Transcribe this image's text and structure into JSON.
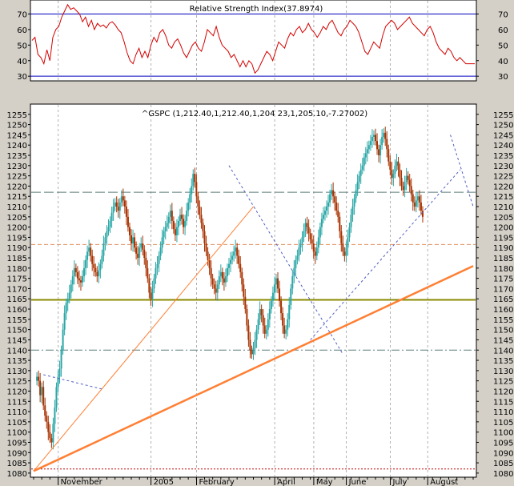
{
  "chart_data": [
    {
      "type": "line",
      "title": "Relative Strength Index(37.8974)",
      "ylim": [
        27,
        79
      ],
      "yticks": [
        30,
        40,
        50,
        60,
        70
      ],
      "reference_lines": [
        30,
        70
      ],
      "series": [
        {
          "color": "#d40000",
          "x": [
            0,
            2,
            4,
            6,
            8,
            10,
            12,
            14,
            16,
            18,
            20,
            22,
            24,
            26,
            28,
            30,
            32,
            34,
            36,
            38,
            40,
            42,
            44,
            46,
            48,
            50,
            52,
            54,
            56,
            58,
            60,
            62,
            64,
            66,
            68,
            70,
            72,
            74,
            76,
            78,
            80,
            82,
            84,
            86,
            88,
            90,
            92,
            94,
            96,
            98,
            100,
            102,
            104,
            106,
            108,
            110,
            112,
            114,
            116,
            118,
            120,
            122,
            124,
            126,
            128,
            130,
            132,
            134,
            136,
            138,
            140,
            142,
            144,
            146,
            148,
            150,
            152,
            154,
            156,
            158,
            160,
            162,
            164,
            166,
            168,
            170,
            172,
            174,
            176,
            178,
            180,
            182,
            184,
            186,
            188,
            190,
            192,
            194,
            196,
            198,
            200,
            202,
            204,
            206,
            208,
            210,
            212,
            214,
            216,
            218,
            220,
            222,
            224,
            226,
            228,
            230,
            232,
            234,
            236,
            238,
            240,
            242,
            244,
            246,
            248,
            250,
            252,
            254,
            256,
            258,
            260,
            262,
            264,
            266,
            268,
            270,
            272,
            274,
            276,
            278,
            280,
            282,
            284,
            286,
            288,
            290,
            292,
            294,
            296,
            298
          ],
          "values": [
            53,
            55,
            44,
            42,
            38,
            47,
            40,
            55,
            60,
            62,
            68,
            72,
            76,
            73,
            74,
            72,
            70,
            65,
            68,
            62,
            66,
            60,
            64,
            62,
            63,
            61,
            64,
            65,
            63,
            60,
            58,
            52,
            45,
            40,
            38,
            44,
            48,
            42,
            46,
            42,
            50,
            55,
            52,
            58,
            60,
            56,
            50,
            48,
            52,
            54,
            50,
            45,
            42,
            46,
            50,
            52,
            48,
            46,
            52,
            60,
            58,
            56,
            62,
            55,
            50,
            48,
            46,
            42,
            44,
            40,
            36,
            40,
            36,
            40,
            38,
            32,
            34,
            38,
            42,
            46,
            44,
            40,
            46,
            52,
            50,
            48,
            54,
            58,
            56,
            60,
            62,
            58,
            60,
            64,
            60,
            58,
            55,
            58,
            62,
            60,
            64,
            66,
            62,
            58,
            56,
            60,
            62,
            66,
            64,
            62,
            58,
            52,
            46,
            44,
            48,
            52,
            50,
            48,
            56,
            62,
            64,
            66,
            64,
            60,
            62,
            64,
            66,
            68,
            64,
            62,
            60,
            58,
            56,
            60,
            62,
            58,
            52,
            48,
            46,
            44,
            48,
            46,
            42,
            40,
            42,
            40,
            38,
            38,
            38,
            38
          ]
        }
      ]
    },
    {
      "type": "candlestick",
      "title": "^GSPC (1,212.40,1,212.40,1,204 23,1,205.10,-7.27002)",
      "ylim": [
        1078,
        1260
      ],
      "yticks": [
        1080,
        1085,
        1090,
        1095,
        1100,
        1105,
        1110,
        1115,
        1120,
        1125,
        1130,
        1135,
        1140,
        1145,
        1150,
        1155,
        1160,
        1165,
        1170,
        1175,
        1180,
        1185,
        1190,
        1195,
        1200,
        1205,
        1210,
        1215,
        1220,
        1225,
        1230,
        1235,
        1240,
        1245,
        1250,
        1255
      ],
      "xlabels": [
        {
          "label": "November",
          "x": 20
        },
        {
          "label": "2005",
          "x": 77
        },
        {
          "label": "February",
          "x": 105
        },
        {
          "label": "April",
          "x": 153
        },
        {
          "label": "May",
          "x": 177
        },
        {
          "label": "June",
          "x": 197
        },
        {
          "label": "July",
          "x": 224
        },
        {
          "label": "August",
          "x": 247
        }
      ],
      "x_max": 270,
      "closes": [
        1127,
        1125,
        1118,
        1122,
        1113,
        1108,
        1105,
        1100,
        1097,
        1095,
        1104,
        1112,
        1122,
        1127,
        1131,
        1140,
        1150,
        1158,
        1163,
        1165,
        1168,
        1172,
        1176,
        1180,
        1178,
        1175,
        1174,
        1173,
        1176,
        1180,
        1184,
        1188,
        1190,
        1186,
        1182,
        1180,
        1178,
        1176,
        1179,
        1182,
        1186,
        1192,
        1195,
        1198,
        1200,
        1203,
        1207,
        1210,
        1212,
        1210,
        1208,
        1212,
        1215,
        1213,
        1210,
        1205,
        1200,
        1196,
        1192,
        1195,
        1190,
        1187,
        1185,
        1190,
        1192,
        1189,
        1185,
        1180,
        1175,
        1168,
        1165,
        1170,
        1175,
        1180,
        1182,
        1186,
        1190,
        1195,
        1198,
        1200,
        1202,
        1205,
        1208,
        1203,
        1199,
        1196,
        1200,
        1203,
        1206,
        1204,
        1200,
        1203,
        1208,
        1212,
        1216,
        1220,
        1226,
        1222,
        1215,
        1210,
        1206,
        1202,
        1198,
        1192,
        1188,
        1184,
        1180,
        1175,
        1172,
        1170,
        1168,
        1172,
        1176,
        1178,
        1175,
        1173,
        1176,
        1180,
        1182,
        1184,
        1186,
        1188,
        1190,
        1186,
        1182,
        1178,
        1172,
        1166,
        1160,
        1152,
        1145,
        1140,
        1138,
        1141,
        1145,
        1150,
        1155,
        1160,
        1157,
        1152,
        1148,
        1150,
        1155,
        1160,
        1164,
        1168,
        1172,
        1175,
        1170,
        1164,
        1158,
        1152,
        1148,
        1150,
        1155,
        1162,
        1170,
        1176,
        1180,
        1184,
        1186,
        1190,
        1192,
        1195,
        1198,
        1202,
        1200,
        1197,
        1194,
        1192,
        1188,
        1186,
        1190,
        1195,
        1200,
        1204,
        1206,
        1208,
        1210,
        1212,
        1216,
        1218,
        1215,
        1212,
        1208,
        1205,
        1198,
        1192,
        1188,
        1186,
        1190,
        1195,
        1200,
        1206,
        1210,
        1214,
        1218,
        1222,
        1225,
        1228,
        1230,
        1234,
        1236,
        1238,
        1240,
        1242,
        1244,
        1245,
        1242,
        1238,
        1235,
        1240,
        1244,
        1246,
        1243,
        1238,
        1232,
        1228,
        1224,
        1226,
        1230,
        1232,
        1228,
        1224,
        1220,
        1218,
        1222,
        1225,
        1223,
        1220,
        1216,
        1212,
        1210,
        1213,
        1215,
        1212,
        1208,
        1205
      ],
      "horizontal_lines": [
        {
          "value": 1217,
          "style": "dash-long",
          "color": "#5a7a7a"
        },
        {
          "value": 1191.5,
          "style": "dash",
          "color": "#e09060"
        },
        {
          "value": 1164.5,
          "style": "solid",
          "color": "#8a8a00"
        },
        {
          "value": 1140,
          "style": "dash-dot",
          "color": "#5a7a7a"
        },
        {
          "value": 1082,
          "style": "dot",
          "color": "#c00000"
        }
      ],
      "trend_lines": [
        {
          "x1": 0,
          "y1": 1081,
          "x2": 135,
          "y2": 1210,
          "color": "#ff7f33",
          "width": 1
        },
        {
          "x1": 0,
          "y1": 1081,
          "x2": 270,
          "y2": 1181,
          "color": "#ff7f33",
          "width": 2.5
        },
        {
          "x1": 6,
          "y1": 1128,
          "x2": 42,
          "y2": 1121,
          "color": "#5060c0",
          "width": 1,
          "dash": true
        },
        {
          "x1": 120,
          "y1": 1230,
          "x2": 190,
          "y2": 1138,
          "color": "#5060c0",
          "width": 1,
          "dash": true
        },
        {
          "x1": 170,
          "y1": 1145,
          "x2": 262,
          "y2": 1228,
          "color": "#5060c0",
          "width": 1,
          "dash": true
        },
        {
          "x1": 256,
          "y1": 1245,
          "x2": 270,
          "y2": 1210,
          "color": "#5060c0",
          "width": 1,
          "dash": true
        }
      ]
    }
  ]
}
